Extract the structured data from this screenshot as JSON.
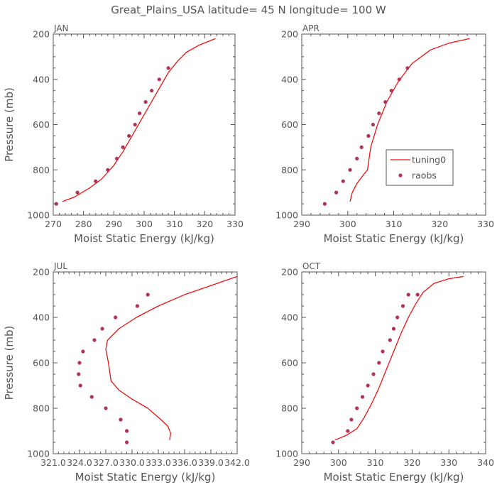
{
  "figure": {
    "title": "Great_Plains_USA   latitude= 45 N longitude= 100 W"
  },
  "colors": {
    "model_line": "#ee1111",
    "obs_marker": "#b3305a",
    "axis": "#555555"
  },
  "legend": {
    "panel": "APR",
    "placement": "mid-right",
    "entries": [
      {
        "label": "tuning0",
        "style": "line"
      },
      {
        "label": "raobs",
        "style": "marker"
      }
    ]
  },
  "chart_data": [
    {
      "type": "line",
      "panel": "JAN",
      "xlabel": "Moist Static Energy (kJ/kg)",
      "ylabel": "Pressure (mb)",
      "xlim": [
        270,
        330
      ],
      "ylim": [
        1000,
        200
      ],
      "xticks": [
        "270",
        "280",
        "290",
        "300",
        "310",
        "320",
        "330"
      ],
      "yticks": [
        "200",
        "400",
        "600",
        "800",
        "1000"
      ],
      "series": [
        {
          "name": "tuning0",
          "kind": "line",
          "x": [
            273,
            277,
            282,
            286,
            290,
            293,
            296,
            299,
            302,
            305,
            308,
            311,
            314,
            318,
            323.5
          ],
          "y": [
            940,
            920,
            880,
            840,
            780,
            720,
            650,
            580,
            510,
            440,
            370,
            320,
            280,
            250,
            220
          ]
        },
        {
          "name": "raobs",
          "kind": "scatter",
          "x": [
            271,
            278,
            284,
            288,
            291,
            293,
            295,
            297,
            298.5,
            300.5,
            302.5,
            305,
            308
          ],
          "y": [
            950,
            900,
            850,
            800,
            750,
            700,
            650,
            600,
            550,
            500,
            450,
            400,
            350
          ]
        }
      ]
    },
    {
      "type": "line",
      "panel": "APR",
      "xlabel": "Moist Static Energy (kJ/kg)",
      "ylabel": "",
      "xlim": [
        290,
        330
      ],
      "ylim": [
        1000,
        200
      ],
      "xticks": [
        "290",
        "300",
        "310",
        "320",
        "330"
      ],
      "yticks": [
        "200",
        "400",
        "600",
        "800",
        "1000"
      ],
      "series": [
        {
          "name": "tuning0",
          "kind": "line",
          "x": [
            300.5,
            301,
            302,
            303.5,
            304.3,
            305,
            306.5,
            308.5,
            311,
            314,
            318,
            322,
            326.5
          ],
          "y": [
            940,
            900,
            860,
            820,
            800,
            700,
            600,
            500,
            410,
            330,
            270,
            240,
            220
          ]
        },
        {
          "name": "raobs",
          "kind": "scatter",
          "x": [
            295,
            297.5,
            299,
            300.5,
            302,
            303,
            304.5,
            305.5,
            306.8,
            308.2,
            309.5,
            311.2,
            313
          ],
          "y": [
            950,
            900,
            850,
            800,
            750,
            700,
            650,
            600,
            550,
            500,
            450,
            400,
            350
          ]
        }
      ]
    },
    {
      "type": "line",
      "panel": "JUL",
      "xlabel": "Moist Static Energy (kJ/kg)",
      "ylabel": "Pressure (mb)",
      "xlim": [
        321.0,
        342.0
      ],
      "ylim": [
        1000,
        200
      ],
      "xticks": [
        "321.0",
        "324.0",
        "327.0",
        "330.0",
        "333.0",
        "336.0",
        "339.0",
        "342.0"
      ],
      "yticks": [
        "200",
        "400",
        "600",
        "800",
        "1000"
      ],
      "series": [
        {
          "name": "tuning0",
          "kind": "line",
          "x": [
            334.3,
            334.4,
            334.1,
            333.3,
            331.8,
            330.0,
            328.5,
            327.6,
            327.3,
            327.0,
            327.2,
            328.5,
            330.5,
            333.0,
            336.0,
            339.0,
            342.0
          ],
          "y": [
            940,
            910,
            880,
            850,
            800,
            760,
            720,
            680,
            600,
            540,
            500,
            450,
            400,
            350,
            300,
            260,
            220
          ]
        },
        {
          "name": "raobs",
          "kind": "scatter",
          "x": [
            329.4,
            329.4,
            328.7,
            327.0,
            325.4,
            324.1,
            323.9,
            324.0,
            324.4,
            325.7,
            326.6,
            328.1,
            330.6,
            331.8
          ],
          "y": [
            950,
            900,
            850,
            800,
            750,
            700,
            650,
            600,
            550,
            500,
            450,
            400,
            350,
            300
          ]
        }
      ]
    },
    {
      "type": "line",
      "panel": "OCT",
      "xlabel": "Moist Static Energy (kJ/kg)",
      "ylabel": "",
      "xlim": [
        290,
        340
      ],
      "ylim": [
        1000,
        200
      ],
      "xticks": [
        "290",
        "300",
        "310",
        "320",
        "330",
        "340"
      ],
      "yticks": [
        "200",
        "400",
        "600",
        "800",
        "1000"
      ],
      "series": [
        {
          "name": "tuning0",
          "kind": "line",
          "x": [
            299,
            302,
            305,
            307,
            309,
            311,
            313,
            315,
            317,
            319,
            321,
            323,
            326,
            330,
            334
          ],
          "y": [
            940,
            920,
            890,
            840,
            780,
            710,
            630,
            550,
            470,
            400,
            340,
            290,
            250,
            230,
            220
          ]
        },
        {
          "name": "raobs",
          "kind": "scatter",
          "x": [
            298.5,
            302.5,
            303.5,
            305,
            306.5,
            308,
            309.5,
            311,
            312,
            314,
            315,
            316,
            317.5,
            319,
            321.5
          ],
          "y": [
            950,
            900,
            850,
            800,
            750,
            700,
            650,
            600,
            550,
            500,
            450,
            400,
            350,
            300,
            300
          ]
        }
      ]
    }
  ]
}
